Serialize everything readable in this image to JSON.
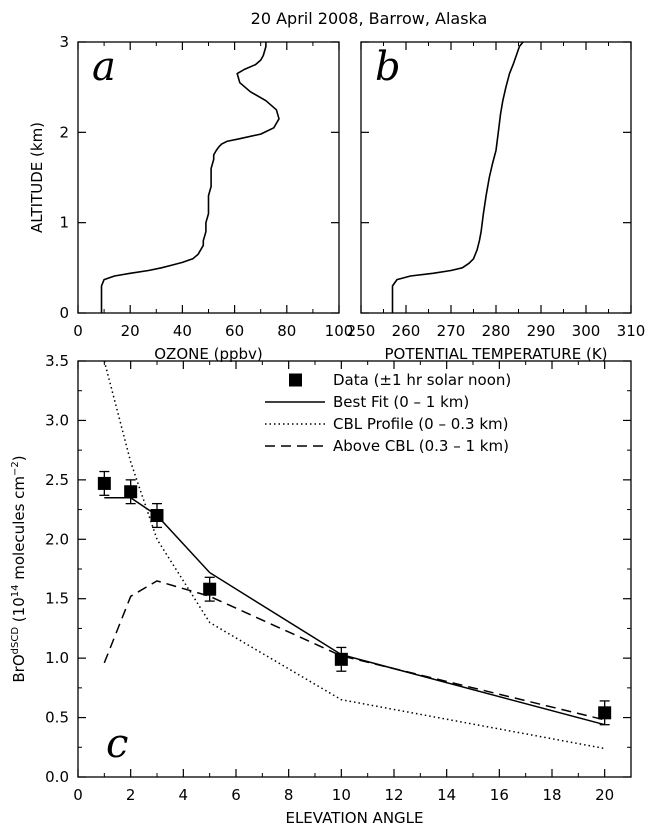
{
  "title": "20 April 2008, Barrow, Alaska",
  "chart_data": [
    {
      "panel": "a",
      "type": "line",
      "xlabel": "OZONE (ppbv)",
      "ylabel": "ALTITUDE (km)",
      "xlim": [
        0,
        100
      ],
      "ylim": [
        0,
        3
      ],
      "xticks": [
        0,
        20,
        40,
        60,
        80,
        100
      ],
      "yticks": [
        0,
        1,
        2,
        3
      ],
      "series": [
        {
          "x": [
            9,
            9,
            10,
            14,
            20,
            27,
            32,
            36,
            40,
            44,
            46,
            47,
            48,
            48,
            49,
            49,
            50,
            50,
            50,
            51,
            51,
            51,
            52,
            52,
            53,
            54,
            55,
            57,
            62,
            70,
            75,
            77,
            76,
            72,
            66,
            62,
            61,
            64,
            68,
            70,
            71,
            72,
            72
          ],
          "y": [
            0.0,
            0.3,
            0.37,
            0.41,
            0.44,
            0.47,
            0.5,
            0.53,
            0.56,
            0.6,
            0.65,
            0.7,
            0.75,
            0.8,
            0.9,
            1.0,
            1.1,
            1.2,
            1.3,
            1.4,
            1.5,
            1.6,
            1.7,
            1.75,
            1.8,
            1.84,
            1.87,
            1.9,
            1.93,
            1.98,
            2.05,
            2.15,
            2.25,
            2.35,
            2.45,
            2.55,
            2.65,
            2.7,
            2.75,
            2.8,
            2.85,
            2.95,
            3.0
          ]
        }
      ]
    },
    {
      "panel": "b",
      "type": "line",
      "xlabel": "POTENTIAL TEMPERATURE (K)",
      "ylabel": "",
      "xlim": [
        250,
        310
      ],
      "ylim": [
        0,
        3
      ],
      "xticks": [
        250,
        260,
        270,
        280,
        290,
        300,
        310
      ],
      "yticks": [
        0,
        1,
        2,
        3
      ],
      "series": [
        {
          "x": [
            257,
            257,
            258,
            261,
            266,
            270,
            272.5,
            274,
            275,
            275.8,
            276.3,
            276.7,
            277.2,
            277.8,
            278.5,
            279.2,
            280,
            280.5,
            281,
            281.5,
            282.2,
            283,
            283.8,
            284.5,
            285.2,
            286
          ],
          "y": [
            0.0,
            0.3,
            0.37,
            0.41,
            0.44,
            0.47,
            0.5,
            0.55,
            0.6,
            0.7,
            0.8,
            0.9,
            1.1,
            1.3,
            1.5,
            1.65,
            1.8,
            2.0,
            2.2,
            2.35,
            2.5,
            2.65,
            2.75,
            2.85,
            2.95,
            3.0
          ]
        }
      ]
    },
    {
      "panel": "c",
      "type": "line",
      "xlabel": "ELEVATION ANGLE",
      "ylabel": "BrO",
      "ylabel_sup": "dSCD",
      "ylabel_rest": " (10",
      "ylabel_exp": "14",
      "ylabel_units": " molecules cm",
      "ylabel_units_exp": "−2",
      "ylabel_close": ")",
      "xlim": [
        0,
        21
      ],
      "ylim": [
        0,
        3.5
      ],
      "xticks": [
        0,
        2,
        4,
        6,
        8,
        10,
        12,
        14,
        16,
        18,
        20
      ],
      "yticks": [
        "0.0",
        "0.5",
        "1.0",
        "1.5",
        "2.0",
        "2.5",
        "3.0",
        "3.5"
      ],
      "series": [
        {
          "name": "Data (±1 hr solar noon)",
          "style": "markers",
          "x": [
            1,
            2,
            3,
            5,
            10,
            20
          ],
          "y": [
            2.47,
            2.4,
            2.2,
            1.58,
            0.99,
            0.54
          ],
          "err": [
            0.1,
            0.1,
            0.1,
            0.1,
            0.1,
            0.1
          ]
        },
        {
          "name": "Best Fit (0 – 1 km)",
          "style": "solid",
          "x": [
            1,
            2,
            3,
            5,
            10,
            20
          ],
          "y": [
            2.35,
            2.35,
            2.2,
            1.72,
            1.03,
            0.44
          ]
        },
        {
          "name": "CBL Profile (0 – 0.3 km)",
          "style": "dotted",
          "x": [
            1,
            2,
            3,
            5,
            10,
            20
          ],
          "y": [
            3.5,
            2.65,
            2.0,
            1.3,
            0.65,
            0.24
          ]
        },
        {
          "name": "Above CBL (0.3 – 1 km)",
          "style": "dashed",
          "x": [
            1,
            2,
            3,
            5,
            10,
            20
          ],
          "y": [
            0.96,
            1.52,
            1.65,
            1.52,
            1.02,
            0.48
          ]
        }
      ]
    }
  ]
}
